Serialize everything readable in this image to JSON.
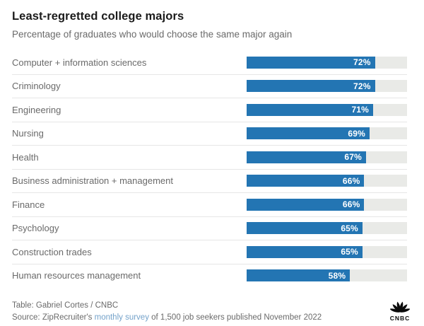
{
  "header": {
    "title": "Least-regretted college majors",
    "subtitle": "Percentage of graduates who would choose the same major again"
  },
  "chart_data": {
    "type": "bar",
    "orientation": "horizontal",
    "title": "Least-regretted college majors",
    "subtitle": "Percentage of graduates who would choose the same major again",
    "categories": [
      "Computer + information sciences",
      "Criminology",
      "Engineering",
      "Nursing",
      "Health",
      "Business administration + management",
      "Finance",
      "Psychology",
      "Construction trades",
      "Human resources management"
    ],
    "values": [
      72,
      72,
      71,
      69,
      67,
      66,
      66,
      65,
      65,
      58
    ],
    "value_labels": [
      "72%",
      "72%",
      "71%",
      "69%",
      "67%",
      "66%",
      "66%",
      "65%",
      "65%",
      "58%"
    ],
    "xlim": [
      0,
      90
    ],
    "unit": "%",
    "grid": "off",
    "legend": "none",
    "bar_color": "#2375b3",
    "track_color": "#e9eae7",
    "value_label_color": "#ffffff"
  },
  "footer": {
    "table_credit": "Table: Gabriel Cortes / CNBC",
    "source_prefix": "Source: ZipRecruiter's ",
    "source_link": "monthly survey",
    "source_suffix": " of 1,500 job seekers published November 2022",
    "logo_text": "CNBC"
  }
}
